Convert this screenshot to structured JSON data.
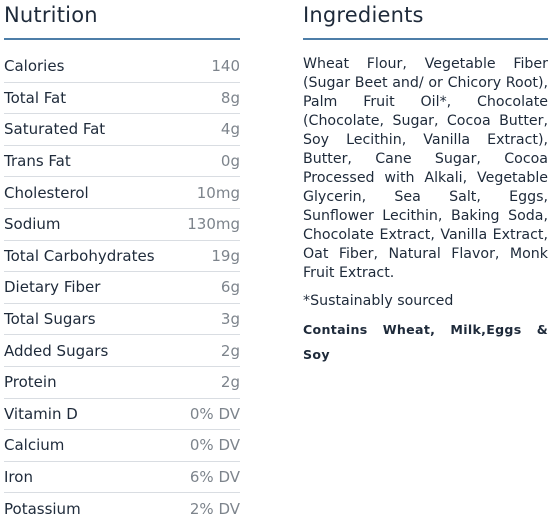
{
  "nutrition": {
    "title": "Nutrition",
    "rows": [
      {
        "label": "Calories",
        "value": "140"
      },
      {
        "label": "Total Fat",
        "value": "8g"
      },
      {
        "label": "Saturated Fat",
        "value": "4g"
      },
      {
        "label": "Trans Fat",
        "value": "0g"
      },
      {
        "label": "Cholesterol",
        "value": "10mg"
      },
      {
        "label": "Sodium",
        "value": "130mg"
      },
      {
        "label": "Total Carbohydrates",
        "value": "19g"
      },
      {
        "label": "Dietary Fiber",
        "value": "6g"
      },
      {
        "label": "Total Sugars",
        "value": "3g"
      },
      {
        "label": "Added Sugars",
        "value": "2g"
      },
      {
        "label": "Protein",
        "value": "2g"
      },
      {
        "label": "Vitamin D",
        "value": "0% DV"
      },
      {
        "label": "Calcium",
        "value": "0% DV"
      },
      {
        "label": "Iron",
        "value": "6% DV"
      },
      {
        "label": "Potassium",
        "value": "2% DV"
      }
    ]
  },
  "ingredients": {
    "title": "Ingredients",
    "text": "Wheat Flour, Vegetable Fiber (Sugar Beet and/ or Chicory Root), Palm Fruit Oil*, Chocolate (Chocolate, Sugar, Cocoa Butter, Soy Lecithin, Vanilla Extract), Butter, Cane Sugar, Cocoa Processed with Alkali, Vegetable Glycerin, Sea Salt, Eggs, Sunflower Lecithin, Baking Soda, Chocolate Extract, Vanilla Extract, Oat Fiber, Natural Flavor, Monk Fruit Extract.",
    "note": "*Sustainably sourced",
    "allergen": "Contains Wheat, Milk,Eggs & Soy"
  },
  "colors": {
    "text": "#1e2a3a",
    "value_text": "#7d848c",
    "accent_rule": "#4d7ea8",
    "row_divider": "#d9dde2"
  }
}
